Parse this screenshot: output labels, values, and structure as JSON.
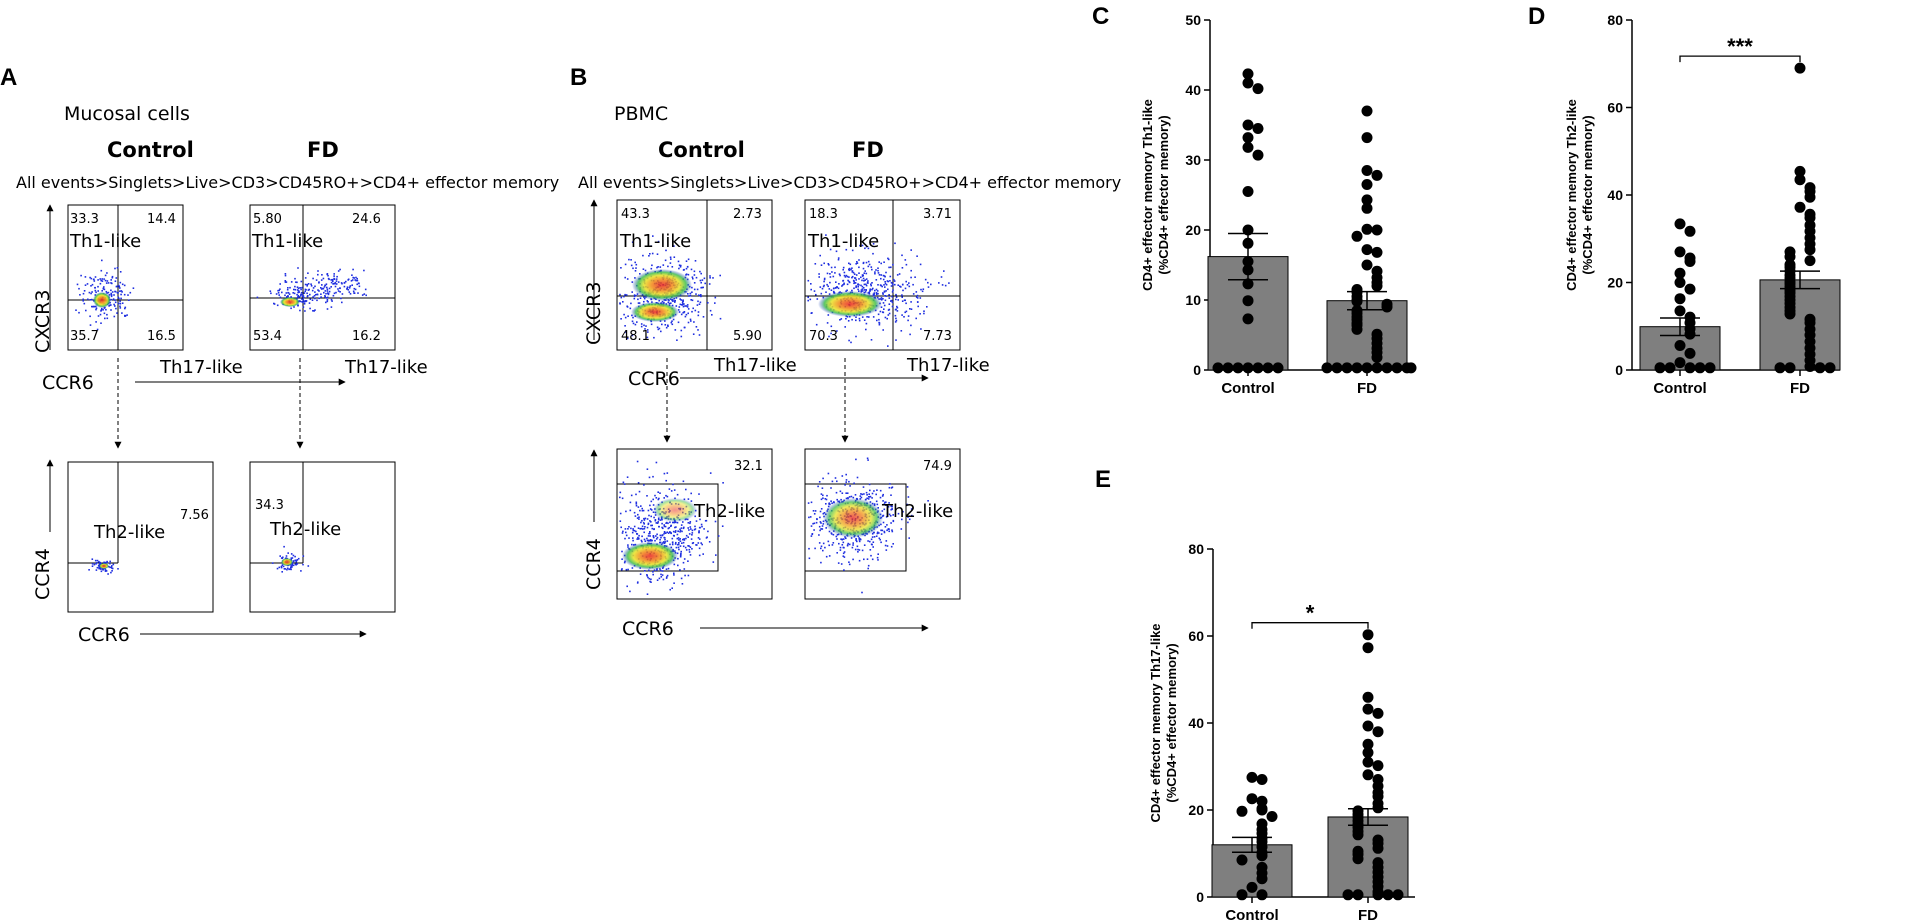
{
  "colors": {
    "bar": "#7f7f7f",
    "dot": "#000000",
    "axis": "#000000"
  },
  "panel_a": {
    "label": "A",
    "title": "Mucosal cells",
    "group1": "Control",
    "group2": "FD",
    "gating": "All events>Singlets>Live>CD3>CD45RO+>CD4+ effector memory",
    "top": {
      "ylabel": "CXCR3",
      "xlabel": "CCR6",
      "th1": "Th1-like",
      "th17": "Th17-like",
      "control": {
        "ul": "33.3",
        "ur": "14.4",
        "ll": "35.7",
        "lr": "16.5"
      },
      "fd": {
        "ul": "5.80",
        "ur": "24.6",
        "ll": "53.4",
        "lr": "16.2"
      }
    },
    "bottom": {
      "ylabel": "CCR4",
      "xlabel": "CCR6",
      "th2": "Th2-like",
      "control": {
        "value": "7.56"
      },
      "fd": {
        "value": "34.3"
      }
    }
  },
  "panel_b": {
    "label": "B",
    "title": "PBMC",
    "group1": "Control",
    "group2": "FD",
    "gating": "All events>Singlets>Live>CD3>CD45RO+>CD4+ effector memory",
    "top": {
      "ylabel": "CXCR3",
      "xlabel": "CCR6",
      "th1": "Th1-like",
      "th17": "Th17-like",
      "control": {
        "ul": "43.3",
        "ur": "2.73",
        "ll": "48.1",
        "lr": "5.90"
      },
      "fd": {
        "ul": "18.3",
        "ur": "3.71",
        "ll": "70.3",
        "lr": "7.73"
      }
    },
    "bottom": {
      "ylabel": "CCR4",
      "xlabel": "CCR6",
      "th2": "Th2-like",
      "control": {
        "value": "32.1"
      },
      "fd": {
        "value": "74.9"
      }
    }
  },
  "chart_data": [
    {
      "panel": "C",
      "type": "bar",
      "categories": [
        "Control",
        "FD"
      ],
      "ylabel_line1": "CD4+ effector memory Th1-like",
      "ylabel_line2": "(%CD4+ effector memory)",
      "ylim": [
        0,
        50
      ],
      "yticks": [
        0,
        10,
        20,
        30,
        40,
        50
      ],
      "means": [
        16.2,
        9.9
      ],
      "sem": [
        3.3,
        1.3
      ],
      "significance": "",
      "points": [
        [
          42.3,
          41.0,
          40.2,
          35.0,
          34.5,
          33.2,
          31.8,
          30.7,
          25.5,
          20.0,
          18.1,
          15.5,
          14.3,
          12.3,
          9.9,
          7.3,
          0.3,
          0.3,
          0.3,
          0.3,
          0.3,
          0.3,
          0.3
        ],
        [
          37.0,
          33.2,
          28.5,
          27.8,
          26.5,
          24.3,
          23.1,
          20.1,
          20.0,
          19.1,
          17.2,
          16.8,
          15.0,
          14.1,
          13.2,
          12.5,
          12.0,
          11.5,
          11.1,
          10.5,
          10.0,
          9.8,
          9.4,
          9.0,
          8.5,
          8.1,
          7.6,
          7.2,
          6.7,
          6.4,
          5.8,
          5.1,
          4.5,
          3.8,
          3.1,
          2.5,
          1.8,
          0.3,
          0.3,
          0.3,
          0.3,
          0.3,
          0.3,
          0.3,
          0.3,
          0.3,
          0.3
        ]
      ]
    },
    {
      "panel": "D",
      "type": "bar",
      "categories": [
        "Control",
        "FD"
      ],
      "ylabel_line1": "CD4+ effector memory Th2-like",
      "ylabel_line2": "(%CD4+ effector memory)",
      "ylim": [
        0,
        80
      ],
      "yticks": [
        0,
        20,
        40,
        60,
        80
      ],
      "means": [
        9.9,
        20.6
      ],
      "sem": [
        2.0,
        2.0
      ],
      "significance": "***",
      "points": [
        [
          33.4,
          31.7,
          27.0,
          25.6,
          24.8,
          22.1,
          20.0,
          18.5,
          16.3,
          13.5,
          12.1,
          10.8,
          9.4,
          8.2,
          5.6,
          3.8,
          1.7,
          0.5,
          0.5,
          0.5,
          0.5,
          0.5
        ],
        [
          69.0,
          45.4,
          43.5,
          41.7,
          40.8,
          39.5,
          37.2,
          35.6,
          34.8,
          33.1,
          31.7,
          30.2,
          28.8,
          27.5,
          27.0,
          25.9,
          25.0,
          24.1,
          23.5,
          22.6,
          21.7,
          21.0,
          20.2,
          19.7,
          19.0,
          18.2,
          17.6,
          16.8,
          16.0,
          15.2,
          14.3,
          13.5,
          12.8,
          11.6,
          10.8,
          9.3,
          8.0,
          6.5,
          5.0,
          3.6,
          2.2,
          0.8,
          0.5,
          0.5,
          0.5,
          0.5
        ]
      ]
    },
    {
      "panel": "E",
      "type": "bar",
      "categories": [
        "Control",
        "FD"
      ],
      "ylabel_line1": "CD4+ effector memory Th17-like",
      "ylabel_line2": "(%CD4+ effector memory)",
      "ylim": [
        0,
        80
      ],
      "yticks": [
        0,
        20,
        40,
        60,
        80
      ],
      "means": [
        12.0,
        18.4
      ],
      "sem": [
        1.7,
        1.9
      ],
      "significance": "*",
      "points": [
        [
          27.5,
          27.0,
          22.6,
          22.0,
          20.3,
          20.0,
          19.7,
          18.5,
          16.8,
          15.5,
          14.6,
          13.5,
          12.7,
          11.5,
          10.2,
          9.5,
          8.5,
          6.8,
          5.5,
          4.2,
          2.2,
          0.5,
          0.5
        ],
        [
          60.3,
          57.3,
          45.9,
          43.2,
          42.2,
          39.3,
          38.0,
          35.1,
          33.2,
          31.0,
          30.2,
          28.1,
          27.0,
          25.5,
          24.0,
          23.1,
          21.5,
          20.5,
          19.8,
          19.0,
          18.3,
          17.5,
          16.7,
          16.0,
          15.1,
          14.3,
          13.1,
          12.3,
          11.2,
          10.5,
          9.8,
          8.8,
          7.9,
          6.8,
          5.7,
          4.6,
          3.5,
          2.4,
          1.2,
          0.5,
          0.5,
          0.5,
          0.5,
          0.5
        ]
      ]
    }
  ]
}
